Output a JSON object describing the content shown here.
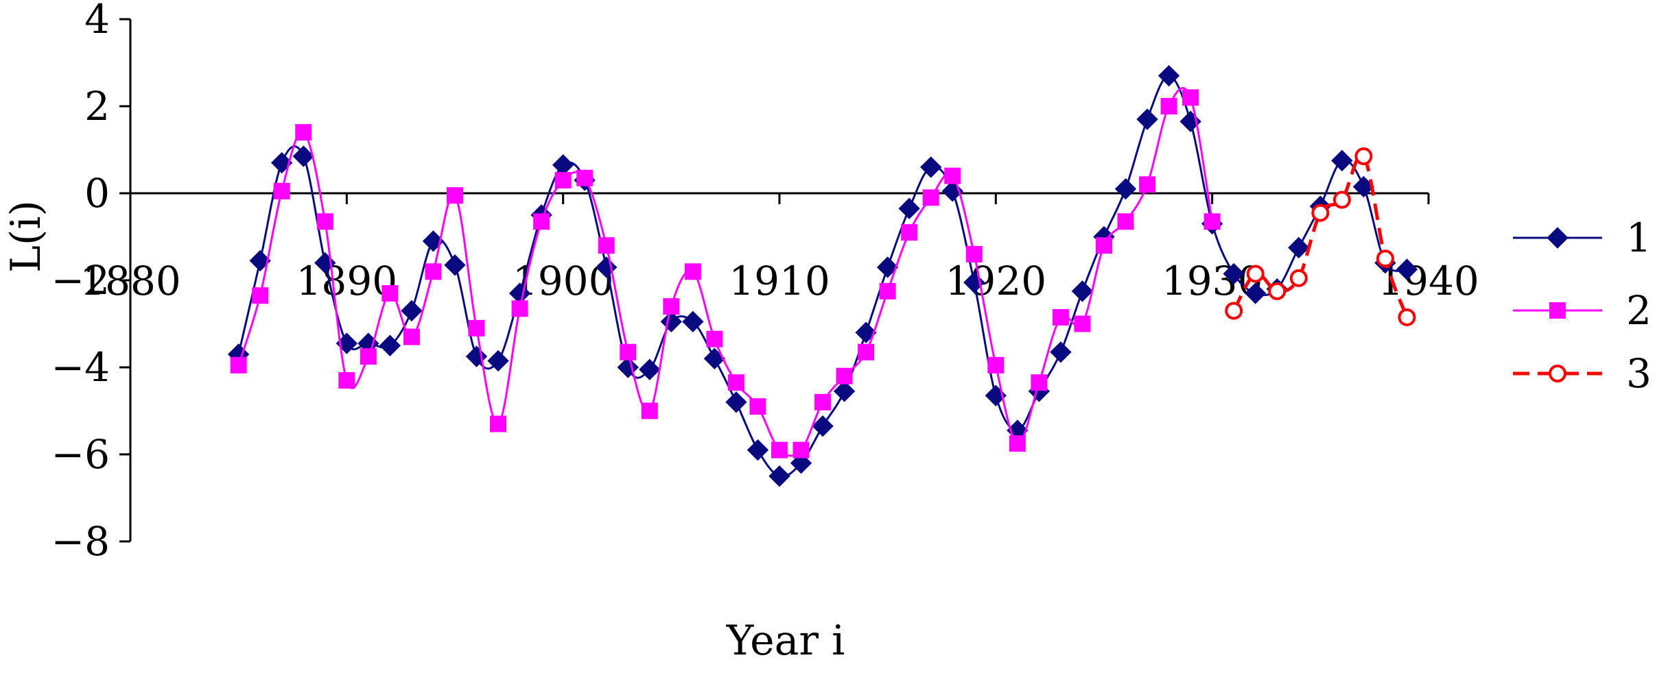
{
  "chart_data": {
    "type": "line",
    "xlabel": "Year i",
    "ylabel": "L(i)",
    "xlim": [
      1880,
      1940
    ],
    "ylim": [
      -8,
      4
    ],
    "xticks": [
      1880,
      1890,
      1900,
      1910,
      1920,
      1930,
      1940
    ],
    "xtick_labels": [
      "1880",
      "1890",
      "1900",
      "1910",
      "1920",
      "1930",
      "1940"
    ],
    "yticks": [
      -8,
      -6,
      -4,
      -2,
      0,
      2,
      4
    ],
    "ytick_labels": [
      "−8",
      "−6",
      "−4",
      "−2",
      "0",
      "2",
      "4"
    ],
    "grid": false,
    "legend_position": "right",
    "series": [
      {
        "name": "1",
        "color": "#0a0a80",
        "marker": "diamond",
        "line_style": "solid",
        "x": [
          1885,
          1886,
          1887,
          1888,
          1889,
          1890,
          1891,
          1892,
          1893,
          1894,
          1895,
          1896,
          1897,
          1898,
          1899,
          1900,
          1901,
          1902,
          1903,
          1904,
          1905,
          1906,
          1907,
          1908,
          1909,
          1910,
          1911,
          1912,
          1913,
          1914,
          1915,
          1916,
          1917,
          1918,
          1919,
          1920,
          1921,
          1922,
          1923,
          1924,
          1925,
          1926,
          1927,
          1928,
          1929,
          1930,
          1931,
          1932,
          1933,
          1934,
          1935,
          1936,
          1937,
          1938,
          1939
        ],
        "y": [
          -3.7,
          -1.55,
          0.7,
          0.85,
          -1.6,
          -3.45,
          -3.45,
          -3.5,
          -2.7,
          -1.1,
          -1.65,
          -3.75,
          -3.85,
          -2.3,
          -0.5,
          0.65,
          0.3,
          -1.7,
          -4.0,
          -4.05,
          -2.95,
          -2.95,
          -3.8,
          -4.8,
          -5.9,
          -6.5,
          -6.2,
          -5.35,
          -4.55,
          -3.2,
          -1.7,
          -0.35,
          0.6,
          0.05,
          -2.05,
          -4.65,
          -5.45,
          -4.55,
          -3.65,
          -2.25,
          -1.0,
          0.1,
          1.7,
          2.7,
          1.65,
          -0.7,
          -1.85,
          -2.3,
          -2.2,
          -1.25,
          -0.3,
          0.75,
          0.15,
          -1.6,
          -1.75
        ]
      },
      {
        "name": "2",
        "color": "#ff00ff",
        "marker": "square",
        "line_style": "solid",
        "x": [
          1885,
          1886,
          1887,
          1888,
          1889,
          1890,
          1891,
          1892,
          1893,
          1894,
          1895,
          1896,
          1897,
          1898,
          1899,
          1900,
          1901,
          1902,
          1903,
          1904,
          1905,
          1906,
          1907,
          1908,
          1909,
          1910,
          1911,
          1912,
          1913,
          1914,
          1915,
          1916,
          1917,
          1918,
          1919,
          1920,
          1921,
          1922,
          1923,
          1924,
          1925,
          1926,
          1927,
          1928,
          1929,
          1930
        ],
        "y": [
          -3.95,
          -2.35,
          0.05,
          1.4,
          -0.65,
          -4.3,
          -3.75,
          -2.3,
          -3.3,
          -1.8,
          -0.05,
          -3.1,
          -5.3,
          -2.65,
          -0.65,
          0.3,
          0.35,
          -1.2,
          -3.65,
          -5.0,
          -2.6,
          -1.8,
          -3.35,
          -4.35,
          -4.9,
          -5.9,
          -5.9,
          -4.8,
          -4.2,
          -3.65,
          -2.25,
          -0.9,
          -0.1,
          0.4,
          -1.4,
          -3.95,
          -5.75,
          -4.35,
          -2.85,
          -3.0,
          -1.2,
          -0.65,
          0.2,
          2.0,
          2.2,
          -0.65
        ]
      },
      {
        "name": "3",
        "color": "#ff0000",
        "marker": "open-circle",
        "line_style": "dashed",
        "x": [
          1931,
          1932,
          1933,
          1934,
          1935,
          1936,
          1937,
          1938,
          1939
        ],
        "y": [
          -2.7,
          -1.85,
          -2.25,
          -1.95,
          -0.45,
          -0.15,
          0.85,
          -1.5,
          -2.85
        ]
      }
    ]
  }
}
